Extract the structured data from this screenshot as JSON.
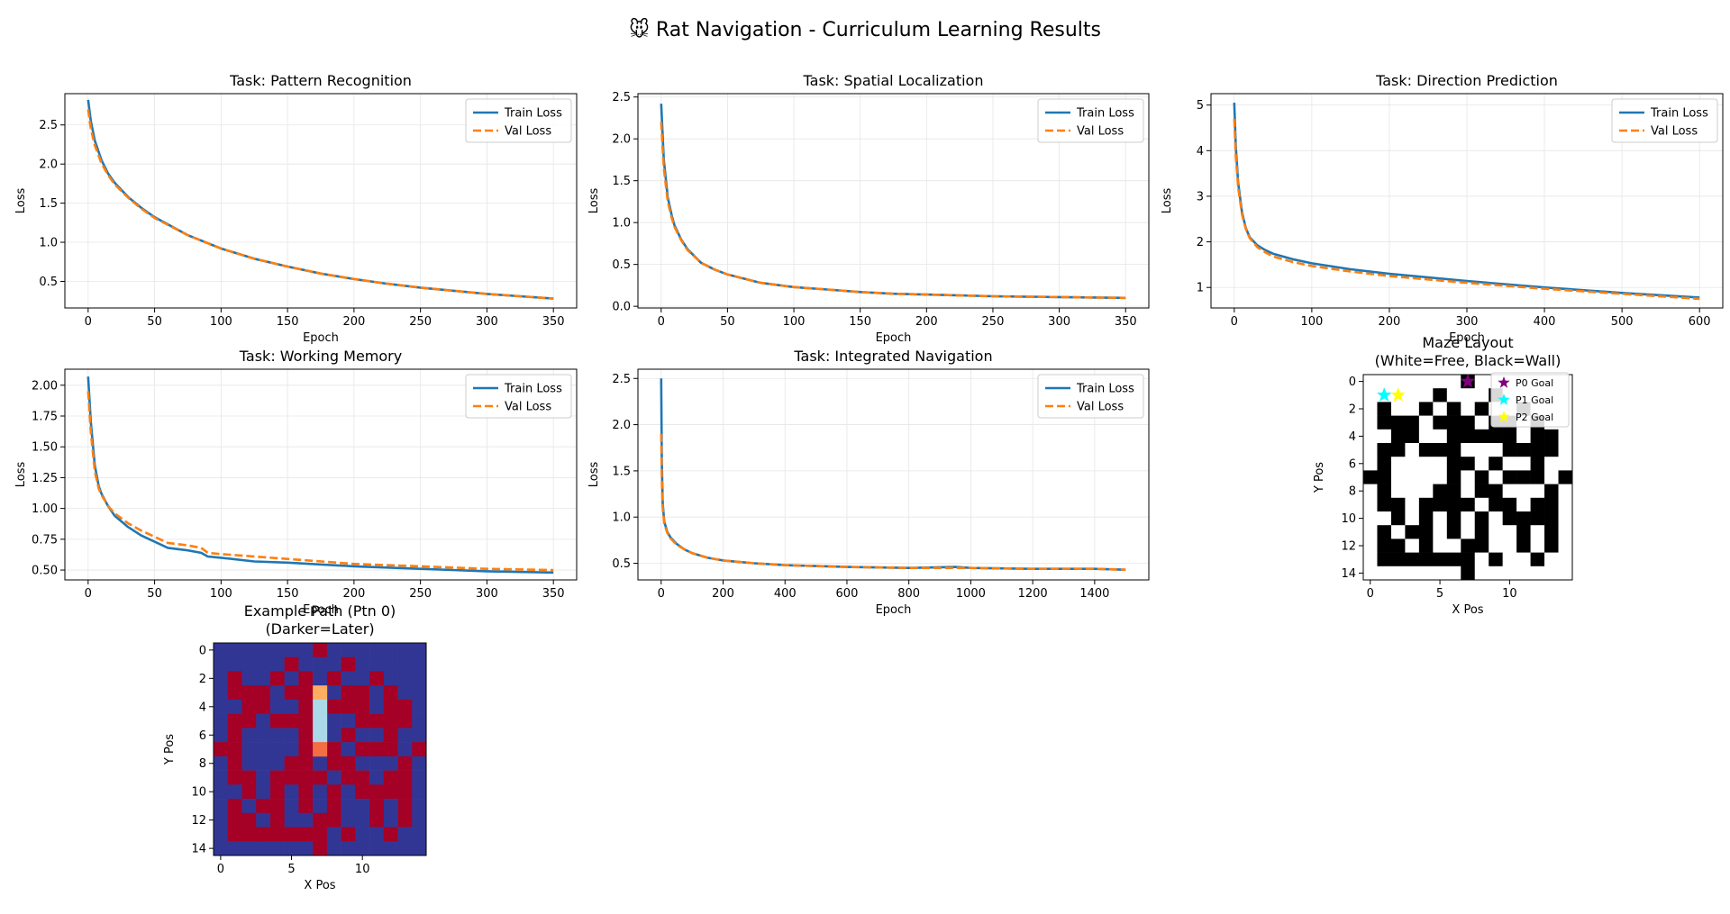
{
  "suptitle": "🐭 Rat Navigation - Curriculum Learning Results",
  "colors": {
    "train": "#1f77b4",
    "val": "#ff7f0e",
    "grid": "#e6e6e6",
    "wall": "#000000",
    "free": "#ffffff",
    "maze_fill": "#a50026",
    "maze_open": "#313695"
  },
  "legend_labels": {
    "train": "Train Loss",
    "val": "Val Loss"
  },
  "chart_data": [
    {
      "type": "line",
      "title": "Task: Pattern Recognition",
      "xlabel": "Epoch",
      "ylabel": "Loss",
      "xlim": [
        -17.5,
        367.5
      ],
      "ylim": [
        0.16,
        2.9
      ],
      "xticks": [
        0,
        50,
        100,
        150,
        200,
        250,
        300,
        350
      ],
      "yticks": [
        0.5,
        1.0,
        1.5,
        2.0,
        2.5
      ],
      "ytick_labels": [
        "0.5",
        "1.0",
        "1.5",
        "2.0",
        "2.5"
      ],
      "legend": "top-right",
      "grid": true,
      "series": [
        {
          "name": "Train Loss",
          "style": "solid",
          "x": [
            0,
            2,
            5,
            10,
            15,
            20,
            30,
            40,
            50,
            75,
            100,
            125,
            150,
            175,
            200,
            225,
            250,
            275,
            300,
            325,
            350
          ],
          "y": [
            2.82,
            2.55,
            2.3,
            2.05,
            1.88,
            1.76,
            1.58,
            1.44,
            1.32,
            1.09,
            0.92,
            0.79,
            0.69,
            0.6,
            0.53,
            0.47,
            0.42,
            0.38,
            0.34,
            0.31,
            0.28
          ]
        },
        {
          "name": "Val Loss",
          "style": "dashed",
          "x": [
            0,
            2,
            5,
            10,
            15,
            20,
            30,
            40,
            50,
            75,
            100,
            125,
            150,
            175,
            200,
            225,
            250,
            275,
            300,
            325,
            350
          ],
          "y": [
            2.7,
            2.45,
            2.24,
            2.01,
            1.86,
            1.74,
            1.57,
            1.43,
            1.31,
            1.09,
            0.92,
            0.79,
            0.69,
            0.6,
            0.53,
            0.47,
            0.42,
            0.38,
            0.34,
            0.31,
            0.28
          ]
        }
      ]
    },
    {
      "type": "line",
      "title": "Task: Spatial Localization",
      "xlabel": "Epoch",
      "ylabel": "Loss",
      "xlim": [
        -17.5,
        367.5
      ],
      "ylim": [
        -0.02,
        2.54
      ],
      "xticks": [
        0,
        50,
        100,
        150,
        200,
        250,
        300,
        350
      ],
      "yticks": [
        0.0,
        0.5,
        1.0,
        1.5,
        2.0,
        2.5
      ],
      "ytick_labels": [
        "0.0",
        "0.5",
        "1.0",
        "1.5",
        "2.0",
        "2.5"
      ],
      "legend": "top-right",
      "grid": true,
      "series": [
        {
          "name": "Train Loss",
          "style": "solid",
          "x": [
            0,
            2,
            5,
            8,
            10,
            15,
            20,
            30,
            40,
            50,
            75,
            100,
            125,
            150,
            175,
            200,
            250,
            300,
            350
          ],
          "y": [
            2.42,
            1.75,
            1.3,
            1.08,
            0.97,
            0.8,
            0.68,
            0.52,
            0.44,
            0.38,
            0.28,
            0.23,
            0.2,
            0.17,
            0.15,
            0.14,
            0.12,
            0.11,
            0.1
          ]
        },
        {
          "name": "Val Loss",
          "style": "dashed",
          "x": [
            0,
            2,
            5,
            8,
            10,
            15,
            20,
            30,
            40,
            50,
            75,
            100,
            125,
            150,
            175,
            200,
            250,
            300,
            350
          ],
          "y": [
            2.2,
            1.65,
            1.25,
            1.05,
            0.95,
            0.79,
            0.67,
            0.52,
            0.44,
            0.38,
            0.28,
            0.23,
            0.2,
            0.17,
            0.15,
            0.14,
            0.12,
            0.11,
            0.1
          ]
        }
      ]
    },
    {
      "type": "line",
      "title": "Task: Direction Prediction",
      "xlabel": "Epoch",
      "ylabel": "Loss",
      "xlim": [
        -30,
        630
      ],
      "ylim": [
        0.55,
        5.25
      ],
      "xticks": [
        0,
        100,
        200,
        300,
        400,
        500,
        600
      ],
      "yticks": [
        1,
        2,
        3,
        4,
        5
      ],
      "ytick_labels": [
        "1",
        "2",
        "3",
        "4",
        "5"
      ],
      "legend": "top-right",
      "grid": true,
      "series": [
        {
          "name": "Train Loss",
          "style": "solid",
          "x": [
            0,
            2,
            5,
            10,
            15,
            20,
            30,
            40,
            50,
            75,
            100,
            150,
            200,
            300,
            400,
            500,
            600
          ],
          "y": [
            5.05,
            4.1,
            3.3,
            2.65,
            2.3,
            2.1,
            1.92,
            1.82,
            1.74,
            1.62,
            1.53,
            1.4,
            1.3,
            1.14,
            1.0,
            0.88,
            0.78
          ]
        },
        {
          "name": "Val Loss",
          "style": "dashed",
          "x": [
            0,
            2,
            5,
            10,
            15,
            20,
            30,
            40,
            50,
            75,
            100,
            150,
            200,
            300,
            400,
            500,
            600
          ],
          "y": [
            4.7,
            3.9,
            3.2,
            2.6,
            2.28,
            2.08,
            1.88,
            1.77,
            1.68,
            1.56,
            1.47,
            1.35,
            1.25,
            1.1,
            0.97,
            0.86,
            0.75
          ]
        }
      ]
    },
    {
      "type": "line",
      "title": "Task: Working Memory",
      "xlabel": "Epoch",
      "ylabel": "Loss",
      "xlim": [
        -17.5,
        367.5
      ],
      "ylim": [
        0.42,
        2.13
      ],
      "xticks": [
        0,
        50,
        100,
        150,
        200,
        250,
        300,
        350
      ],
      "yticks": [
        0.5,
        0.75,
        1.0,
        1.25,
        1.5,
        1.75,
        2.0
      ],
      "ytick_labels": [
        "0.50",
        "0.75",
        "1.00",
        "1.25",
        "1.50",
        "1.75",
        "2.00"
      ],
      "legend": "top-right",
      "grid": true,
      "series": [
        {
          "name": "Train Loss",
          "style": "solid",
          "x": [
            0,
            2,
            5,
            8,
            10,
            15,
            20,
            30,
            40,
            50,
            60,
            75,
            85,
            90,
            100,
            125,
            150,
            200,
            250,
            300,
            350
          ],
          "y": [
            2.07,
            1.7,
            1.35,
            1.18,
            1.12,
            1.02,
            0.94,
            0.85,
            0.78,
            0.73,
            0.68,
            0.66,
            0.64,
            0.61,
            0.6,
            0.57,
            0.56,
            0.53,
            0.51,
            0.49,
            0.48
          ]
        },
        {
          "name": "Val Loss",
          "style": "dashed",
          "x": [
            0,
            2,
            5,
            8,
            10,
            15,
            20,
            30,
            40,
            50,
            60,
            75,
            85,
            90,
            100,
            125,
            150,
            200,
            250,
            300,
            350
          ],
          "y": [
            1.95,
            1.62,
            1.3,
            1.16,
            1.11,
            1.02,
            0.96,
            0.88,
            0.82,
            0.77,
            0.72,
            0.7,
            0.68,
            0.64,
            0.63,
            0.61,
            0.59,
            0.55,
            0.53,
            0.51,
            0.5
          ]
        }
      ]
    },
    {
      "type": "line",
      "title": "Task: Integrated Navigation",
      "xlabel": "Epoch",
      "ylabel": "Loss",
      "xlim": [
        -75,
        1575
      ],
      "ylim": [
        0.32,
        2.6
      ],
      "xticks": [
        0,
        200,
        400,
        600,
        800,
        1000,
        1200,
        1400
      ],
      "yticks": [
        0.5,
        1.0,
        1.5,
        2.0,
        2.5
      ],
      "ytick_labels": [
        "0.5",
        "1.0",
        "1.5",
        "2.0",
        "2.5"
      ],
      "legend": "top-right",
      "grid": true,
      "series": [
        {
          "name": "Train Loss",
          "style": "solid",
          "x": [
            0,
            2,
            5,
            10,
            20,
            30,
            50,
            75,
            100,
            150,
            200,
            300,
            400,
            500,
            600,
            800,
            950,
            1000,
            1200,
            1400,
            1500
          ],
          "y": [
            2.5,
            1.6,
            1.15,
            0.95,
            0.84,
            0.78,
            0.71,
            0.65,
            0.61,
            0.56,
            0.53,
            0.5,
            0.48,
            0.47,
            0.46,
            0.45,
            0.46,
            0.45,
            0.44,
            0.44,
            0.43
          ]
        },
        {
          "name": "Val Loss",
          "style": "dashed",
          "x": [
            0,
            2,
            5,
            10,
            20,
            30,
            50,
            75,
            100,
            150,
            200,
            300,
            400,
            500,
            600,
            800,
            950,
            1000,
            1200,
            1400,
            1500
          ],
          "y": [
            1.9,
            1.4,
            1.1,
            0.93,
            0.83,
            0.77,
            0.7,
            0.65,
            0.61,
            0.56,
            0.53,
            0.5,
            0.48,
            0.47,
            0.46,
            0.45,
            0.45,
            0.45,
            0.44,
            0.44,
            0.43
          ]
        }
      ]
    },
    {
      "type": "heatmap",
      "title": "Maze Layout\n(White=Free, Black=Wall)",
      "xlabel": "X Pos",
      "ylabel": "Y Pos",
      "xticks": [
        0,
        5,
        10
      ],
      "yticks": [
        0,
        2,
        4,
        6,
        8,
        10,
        12,
        14
      ],
      "colormap": "binary",
      "grid_values": [
        [
          0,
          0,
          0,
          0,
          0,
          0,
          0,
          1,
          0,
          0,
          0,
          0,
          0,
          0,
          0
        ],
        [
          0,
          0,
          0,
          0,
          0,
          1,
          0,
          0,
          0,
          1,
          0,
          0,
          0,
          0,
          0
        ],
        [
          0,
          1,
          0,
          0,
          1,
          0,
          1,
          0,
          1,
          0,
          0,
          1,
          0,
          0,
          0
        ],
        [
          0,
          1,
          1,
          1,
          0,
          1,
          1,
          1,
          0,
          1,
          1,
          0,
          1,
          0,
          0
        ],
        [
          0,
          0,
          1,
          1,
          0,
          0,
          1,
          1,
          1,
          1,
          1,
          0,
          1,
          1,
          0
        ],
        [
          0,
          1,
          1,
          0,
          1,
          1,
          1,
          0,
          0,
          0,
          1,
          1,
          1,
          1,
          0
        ],
        [
          0,
          1,
          0,
          0,
          0,
          0,
          1,
          1,
          0,
          1,
          0,
          0,
          1,
          0,
          0
        ],
        [
          1,
          1,
          0,
          0,
          0,
          0,
          1,
          0,
          1,
          0,
          1,
          1,
          1,
          0,
          1
        ],
        [
          0,
          1,
          0,
          0,
          0,
          1,
          1,
          0,
          1,
          1,
          0,
          0,
          0,
          1,
          0
        ],
        [
          0,
          1,
          1,
          0,
          1,
          1,
          1,
          1,
          0,
          1,
          1,
          0,
          1,
          1,
          0
        ],
        [
          0,
          0,
          1,
          0,
          1,
          0,
          1,
          0,
          1,
          0,
          1,
          1,
          1,
          1,
          0
        ],
        [
          0,
          1,
          0,
          1,
          1,
          0,
          1,
          0,
          1,
          0,
          0,
          1,
          0,
          1,
          0
        ],
        [
          0,
          1,
          1,
          0,
          1,
          0,
          0,
          1,
          1,
          0,
          0,
          1,
          0,
          1,
          0
        ],
        [
          0,
          1,
          1,
          1,
          1,
          1,
          1,
          1,
          0,
          1,
          0,
          0,
          1,
          0,
          0
        ],
        [
          0,
          0,
          0,
          0,
          0,
          0,
          0,
          1,
          0,
          0,
          0,
          0,
          0,
          0,
          0
        ]
      ],
      "markers": [
        {
          "label": "P0 Goal",
          "x": 7,
          "y": 0,
          "color": "#800080"
        },
        {
          "label": "P1 Goal",
          "x": 1,
          "y": 1,
          "color": "#00ffff"
        },
        {
          "label": "P2 Goal",
          "x": 2,
          "y": 1,
          "color": "#ffff00"
        }
      ],
      "legend": "top-right"
    },
    {
      "type": "heatmap",
      "title": "Example Path (Ptn 0)\n(Darker=Later)",
      "xlabel": "X Pos",
      "ylabel": "Y Pos",
      "xticks": [
        0,
        5,
        10
      ],
      "yticks": [
        0,
        2,
        4,
        6,
        8,
        10,
        12,
        14
      ],
      "colormap": "RdYlBu",
      "grid_values": "maze_inverse",
      "path": [
        {
          "x": 7,
          "y": 3,
          "color": "#fdae61"
        },
        {
          "x": 7,
          "y": 4,
          "color": "#abd9e9"
        },
        {
          "x": 7,
          "y": 5,
          "color": "#abd9e9"
        },
        {
          "x": 7,
          "y": 6,
          "color": "#abd9e9"
        },
        {
          "x": 7,
          "y": 7,
          "color": "#f46d43"
        }
      ]
    }
  ]
}
